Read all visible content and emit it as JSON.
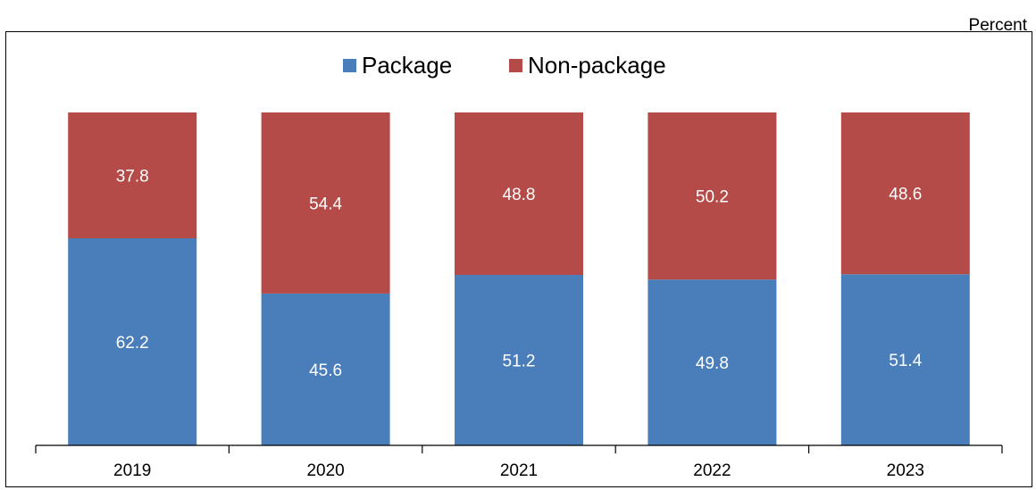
{
  "header": {
    "unit": "Percent"
  },
  "chart_data": {
    "type": "bar",
    "stacked": true,
    "categories": [
      "2019",
      "2020",
      "2021",
      "2022",
      "2023"
    ],
    "series": [
      {
        "name": "Package",
        "color": "#4a7ebb",
        "values": [
          62.2,
          45.6,
          51.2,
          49.8,
          51.4
        ]
      },
      {
        "name": "Non-package",
        "color": "#b54b48",
        "values": [
          37.8,
          54.4,
          48.8,
          50.2,
          48.6
        ]
      }
    ],
    "value_labels_color": "#ffffff",
    "ylim": [
      0,
      100
    ],
    "xlabel": "",
    "ylabel": "",
    "legend": "top-center",
    "grid": false
  }
}
